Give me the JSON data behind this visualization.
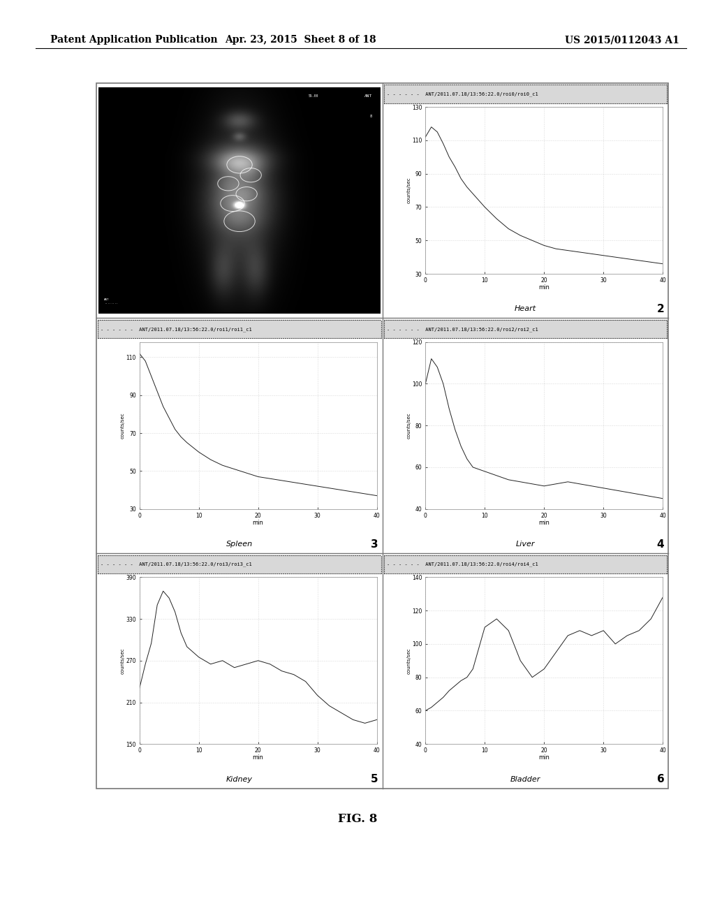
{
  "header_left": "Patent Application Publication",
  "header_center": "Apr. 23, 2015  Sheet 8 of 18",
  "header_right": "US 2015/0112043 A1",
  "footer_label": "FIG. 8",
  "panel_titles": [
    "ANT/2011.07.18/13:56:22.0/roi0/roi0_c1",
    "ANT/2011.07.18/13:56:22.0/roi1/roi1_c1",
    "ANT/2011.07.18/13:56:22.0/roi2/roi2_c1",
    "ANT/2011.07.18/13:56:22.0/roi3/roi3_c1",
    "ANT/2011.07.18/13:56:22.0/roi4/roi4_c1"
  ],
  "organ_labels": [
    "Heart",
    "Spleen",
    "Liver",
    "Kidney",
    "Bladder"
  ],
  "heart": {
    "x": [
      0,
      1,
      2,
      3,
      4,
      5,
      6,
      7,
      8,
      10,
      12,
      14,
      16,
      18,
      20,
      22,
      24,
      26,
      28,
      30,
      32,
      34,
      36,
      38,
      40
    ],
    "y": [
      112,
      118,
      115,
      108,
      100,
      94,
      87,
      82,
      78,
      70,
      63,
      57,
      53,
      50,
      47,
      45,
      44,
      43,
      42,
      41,
      40,
      39,
      38,
      37,
      36
    ],
    "ylim": [
      30,
      130
    ],
    "xlim": [
      0,
      40
    ],
    "yticks": [
      30,
      50,
      70,
      90,
      110,
      130
    ],
    "xticks": [
      0,
      10,
      20,
      30,
      40
    ]
  },
  "spleen": {
    "x": [
      0,
      1,
      2,
      3,
      4,
      5,
      6,
      7,
      8,
      10,
      12,
      14,
      16,
      18,
      20,
      22,
      24,
      26,
      28,
      30,
      32,
      34,
      36,
      38,
      40
    ],
    "y": [
      112,
      108,
      100,
      92,
      84,
      78,
      72,
      68,
      65,
      60,
      56,
      53,
      51,
      49,
      47,
      46,
      45,
      44,
      43,
      42,
      41,
      40,
      39,
      38,
      37
    ],
    "ylim": [
      30,
      118
    ],
    "xlim": [
      0,
      40
    ],
    "yticks": [
      30,
      50,
      70,
      90,
      110
    ],
    "xticks": [
      0,
      10,
      20,
      30,
      40
    ]
  },
  "liver": {
    "x": [
      0,
      1,
      2,
      3,
      4,
      5,
      6,
      7,
      8,
      10,
      12,
      14,
      16,
      18,
      20,
      22,
      24,
      26,
      28,
      30,
      32,
      34,
      36,
      38,
      40
    ],
    "y": [
      100,
      112,
      108,
      100,
      88,
      78,
      70,
      64,
      60,
      58,
      56,
      54,
      53,
      52,
      51,
      52,
      53,
      52,
      51,
      50,
      49,
      48,
      47,
      46,
      45
    ],
    "ylim": [
      40,
      120
    ],
    "xlim": [
      0,
      40
    ],
    "yticks": [
      40,
      60,
      80,
      100,
      120
    ],
    "xticks": [
      0,
      10,
      20,
      30,
      40
    ]
  },
  "kidney": {
    "x": [
      0,
      1,
      2,
      3,
      4,
      5,
      6,
      7,
      8,
      10,
      12,
      14,
      16,
      18,
      20,
      22,
      24,
      26,
      28,
      30,
      32,
      34,
      36,
      38,
      40
    ],
    "y": [
      230,
      265,
      295,
      350,
      370,
      360,
      340,
      310,
      290,
      275,
      265,
      270,
      260,
      265,
      270,
      265,
      255,
      250,
      240,
      220,
      205,
      195,
      185,
      180,
      185
    ],
    "ylim": [
      150,
      390
    ],
    "xlim": [
      0,
      40
    ],
    "yticks": [
      150,
      210,
      270,
      330,
      390
    ],
    "xticks": [
      0,
      10,
      20,
      30,
      40
    ]
  },
  "bladder": {
    "x": [
      0,
      1,
      2,
      3,
      4,
      5,
      6,
      7,
      8,
      10,
      12,
      14,
      16,
      18,
      20,
      22,
      24,
      26,
      28,
      30,
      32,
      34,
      36,
      38,
      40
    ],
    "y": [
      60,
      62,
      65,
      68,
      72,
      75,
      78,
      80,
      85,
      110,
      115,
      108,
      90,
      80,
      85,
      95,
      105,
      108,
      105,
      108,
      100,
      105,
      108,
      115,
      128
    ],
    "ylim": [
      40,
      140
    ],
    "xlim": [
      0,
      40
    ],
    "yticks": [
      40,
      60,
      80,
      100,
      120,
      140
    ],
    "xticks": [
      0,
      10,
      20,
      30,
      40
    ]
  },
  "bg_color": "#ffffff",
  "plot_bg_color": "#ffffff",
  "border_color": "#aaaaaa",
  "line_color": "#222222",
  "title_bar_color": "#d0d0d0",
  "font_size_header": 10
}
